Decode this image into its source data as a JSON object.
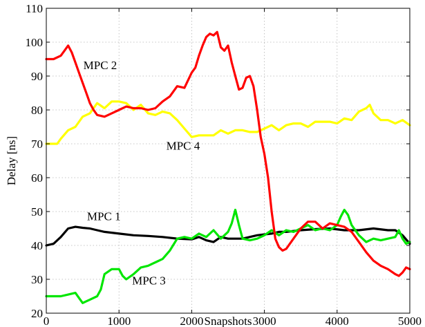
{
  "chart_data": {
    "type": "line",
    "xlabel": "Snapshots",
    "ylabel": "Delay [ns]",
    "xlim": [
      0,
      5000
    ],
    "ylim": [
      20,
      110
    ],
    "x_ticks": [
      0,
      1000,
      2000,
      3000,
      4000,
      5000
    ],
    "y_ticks": [
      20,
      30,
      40,
      50,
      60,
      70,
      80,
      90,
      100,
      110
    ],
    "grid": true,
    "legend": "none",
    "series": [
      {
        "name": "MPC 1",
        "color": "#000000",
        "x": [
          0,
          100,
          200,
          300,
          400,
          500,
          600,
          700,
          800,
          1000,
          1200,
          1400,
          1600,
          1800,
          2000,
          2100,
          2200,
          2300,
          2400,
          2500,
          2700,
          2900,
          3100,
          3200,
          3300,
          3500,
          3700,
          3900,
          4100,
          4300,
          4500,
          4700,
          4800,
          4900,
          5000
        ],
        "values": [
          40.0,
          40.5,
          42.5,
          45.0,
          45.5,
          45.2,
          45.0,
          44.5,
          44.0,
          43.5,
          43.0,
          42.8,
          42.5,
          42.0,
          41.8,
          42.5,
          41.5,
          41.0,
          42.5,
          42.0,
          42.0,
          43.0,
          43.5,
          44.0,
          44.0,
          44.5,
          44.8,
          45.0,
          44.5,
          44.5,
          45.0,
          44.5,
          44.5,
          43.0,
          40.5
        ],
        "label": "MPC 1"
      },
      {
        "name": "MPC 2",
        "color": "#ff0000",
        "x": [
          0,
          100,
          200,
          250,
          300,
          350,
          400,
          450,
          500,
          550,
          600,
          650,
          700,
          800,
          900,
          1000,
          1100,
          1200,
          1300,
          1400,
          1500,
          1600,
          1700,
          1800,
          1900,
          2000,
          2050,
          2100,
          2150,
          2200,
          2250,
          2300,
          2350,
          2400,
          2450,
          2500,
          2550,
          2600,
          2650,
          2700,
          2750,
          2800,
          2850,
          2900,
          2950,
          3000,
          3050,
          3100,
          3150,
          3200,
          3250,
          3300,
          3400,
          3500,
          3600,
          3700,
          3800,
          3900,
          4000,
          4100,
          4200,
          4300,
          4400,
          4500,
          4600,
          4700,
          4800,
          4850,
          4900,
          4950,
          5000
        ],
        "values": [
          95.0,
          95.0,
          96.0,
          97.5,
          99.0,
          97.0,
          94.0,
          91.0,
          88.0,
          85.0,
          82.0,
          80.0,
          78.5,
          78.0,
          79.0,
          80.0,
          81.0,
          80.5,
          80.5,
          80.0,
          80.5,
          82.5,
          84.0,
          87.0,
          86.5,
          91.0,
          92.5,
          96.0,
          99.0,
          101.5,
          102.5,
          102.0,
          103.0,
          98.5,
          97.5,
          99.0,
          94.0,
          90.0,
          86.0,
          86.5,
          89.5,
          90.0,
          87.0,
          80.0,
          72.0,
          67.0,
          60.0,
          50.0,
          42.0,
          39.5,
          38.5,
          39.0,
          42.0,
          45.0,
          47.0,
          47.0,
          45.0,
          46.5,
          46.0,
          45.5,
          44.0,
          41.0,
          38.0,
          35.5,
          34.0,
          33.0,
          31.5,
          31.0,
          32.0,
          33.5,
          33.0
        ],
        "label": "MPC 2"
      },
      {
        "name": "MPC 3",
        "color": "#00e600",
        "x": [
          0,
          100,
          200,
          300,
          400,
          450,
          500,
          600,
          700,
          750,
          800,
          900,
          1000,
          1050,
          1100,
          1200,
          1300,
          1400,
          1500,
          1600,
          1700,
          1800,
          1900,
          2000,
          2100,
          2200,
          2300,
          2400,
          2500,
          2550,
          2600,
          2650,
          2700,
          2800,
          2900,
          3000,
          3100,
          3200,
          3300,
          3400,
          3500,
          3600,
          3700,
          3800,
          3900,
          4000,
          4050,
          4100,
          4150,
          4200,
          4300,
          4400,
          4500,
          4600,
          4700,
          4800,
          4850,
          4900,
          4950,
          5000
        ],
        "values": [
          25.0,
          25.0,
          25.0,
          25.5,
          26.0,
          24.5,
          23.0,
          24.0,
          25.0,
          27.0,
          31.5,
          33.0,
          33.0,
          31.0,
          30.0,
          31.5,
          33.5,
          34.0,
          35.0,
          36.0,
          38.5,
          42.0,
          42.5,
          42.0,
          43.5,
          42.5,
          44.5,
          42.0,
          44.0,
          46.5,
          50.5,
          46.0,
          42.0,
          41.5,
          42.0,
          43.0,
          44.5,
          43.0,
          44.5,
          44.0,
          45.0,
          46.0,
          44.5,
          45.0,
          44.5,
          46.0,
          48.5,
          50.5,
          49.0,
          46.0,
          43.0,
          41.0,
          42.0,
          41.5,
          42.0,
          42.5,
          44.5,
          42.0,
          40.5,
          41.0
        ],
        "label": "MPC 3"
      },
      {
        "name": "MPC 4",
        "color": "#ffff00",
        "x": [
          0,
          150,
          200,
          300,
          400,
          500,
          600,
          700,
          800,
          900,
          1000,
          1100,
          1200,
          1300,
          1400,
          1500,
          1600,
          1700,
          1800,
          1900,
          2000,
          2100,
          2200,
          2300,
          2400,
          2500,
          2600,
          2700,
          2800,
          2900,
          3000,
          3100,
          3200,
          3300,
          3400,
          3500,
          3600,
          3700,
          3800,
          3900,
          4000,
          4100,
          4200,
          4300,
          4400,
          4450,
          4500,
          4600,
          4700,
          4800,
          4900,
          5000
        ],
        "values": [
          70.0,
          70.0,
          71.5,
          74.0,
          75.0,
          78.0,
          79.0,
          82.0,
          80.5,
          82.5,
          82.5,
          82.0,
          80.0,
          81.5,
          79.0,
          78.5,
          79.5,
          79.0,
          77.0,
          74.5,
          72.0,
          72.5,
          72.5,
          72.5,
          74.0,
          73.0,
          74.0,
          74.0,
          73.5,
          73.5,
          74.5,
          75.5,
          74.0,
          75.5,
          76.0,
          76.0,
          75.0,
          76.5,
          76.5,
          76.5,
          76.0,
          77.5,
          77.0,
          79.5,
          80.5,
          81.5,
          79.0,
          77.0,
          77.0,
          76.0,
          77.0,
          75.5
        ],
        "label": "MPC 4"
      }
    ],
    "annotations": [
      {
        "text": "MPC 1",
        "x": 560,
        "y": 47.5
      },
      {
        "text": "MPC 2",
        "x": 510,
        "y": 92.0
      },
      {
        "text": "MPC 3",
        "x": 1180,
        "y": 28.5
      },
      {
        "text": "MPC 4",
        "x": 1650,
        "y": 68.3
      }
    ]
  }
}
